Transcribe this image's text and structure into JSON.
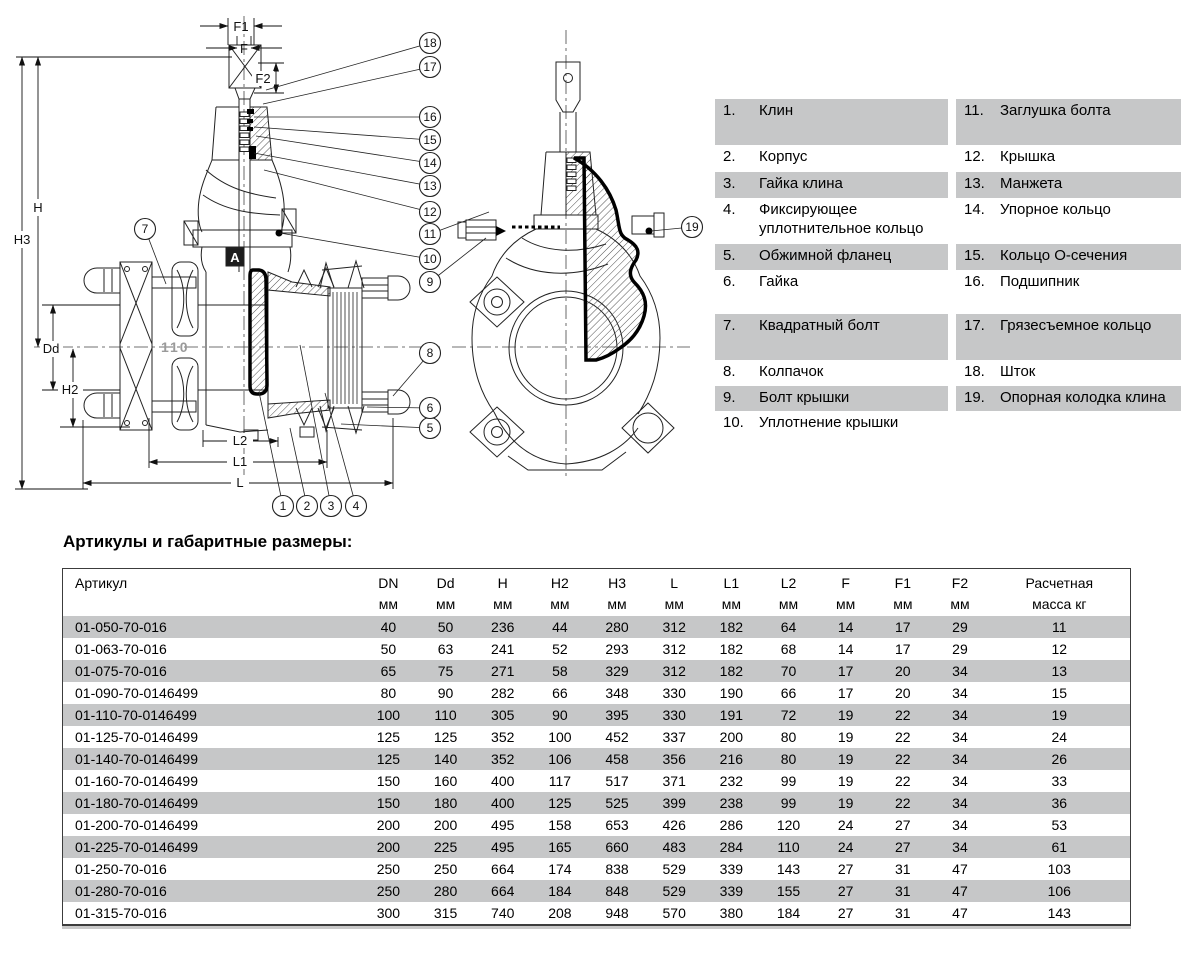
{
  "drawing": {
    "dims": {
      "f1": "F1",
      "f": "F",
      "f2": "F2",
      "h": "H",
      "h3": "H3",
      "dd": "Dd",
      "h2": "H2",
      "l2": "L2",
      "l1": "L1",
      "l": "L"
    },
    "flange_marking": "110",
    "logo_letter": "A",
    "callouts": [
      "1",
      "2",
      "3",
      "4",
      "5",
      "6",
      "7",
      "8",
      "9",
      "10",
      "11",
      "12",
      "13",
      "14",
      "15",
      "16",
      "17",
      "18",
      "19"
    ]
  },
  "parts": {
    "rows": [
      {
        "ln": "1.",
        "lt": "Клин",
        "rn": "11.",
        "rt": "Заглушка болта"
      },
      {
        "ln": "2.",
        "lt": "Корпус",
        "rn": "12.",
        "rt": "Крышка"
      },
      {
        "ln": "3.",
        "lt": "Гайка клина",
        "rn": "13.",
        "rt": "Манжета"
      },
      {
        "ln": "4.",
        "lt": "Фиксирующее уплотнительное кольцо",
        "rn": "14.",
        "rt": "Упорное кольцо"
      },
      {
        "ln": "5.",
        "lt": "Обжимной фланец",
        "rn": "15.",
        "rt": "Кольцо О-сечения"
      },
      {
        "ln": "6.",
        "lt": "Гайка",
        "rn": "16.",
        "rt": "Подшипник"
      },
      {
        "ln": "7.",
        "lt": "Квадратный болт",
        "rn": "17.",
        "rt": "Грязесъемное кольцо"
      },
      {
        "ln": "8.",
        "lt": "Колпачок",
        "rn": "18.",
        "rt": "Шток"
      },
      {
        "ln": "9.",
        "lt": "Болт крышки",
        "rn": "19.",
        "rt": "Опорная колодка клина"
      },
      {
        "ln": "10.",
        "lt": "Уплотнение крышки",
        "rn": "",
        "rt": ""
      }
    ]
  },
  "table": {
    "title": "Артикулы и габаритные размеры:",
    "columns": [
      {
        "label": "Артикул",
        "unit": ""
      },
      {
        "label": "DN",
        "unit": "мм"
      },
      {
        "label": "Dd",
        "unit": "мм"
      },
      {
        "label": "H",
        "unit": "мм"
      },
      {
        "label": "H2",
        "unit": "мм"
      },
      {
        "label": "H3",
        "unit": "мм"
      },
      {
        "label": "L",
        "unit": "мм"
      },
      {
        "label": "L1",
        "unit": "мм"
      },
      {
        "label": "L2",
        "unit": "мм"
      },
      {
        "label": "F",
        "unit": "мм"
      },
      {
        "label": "F1",
        "unit": "мм"
      },
      {
        "label": "F2",
        "unit": "мм"
      },
      {
        "label": "Расчетная",
        "unit": "масса кг"
      }
    ],
    "rows": [
      [
        "01-050-70-016",
        "40",
        "50",
        "236",
        "44",
        "280",
        "312",
        "182",
        "64",
        "14",
        "17",
        "29",
        "11"
      ],
      [
        "01-063-70-016",
        "50",
        "63",
        "241",
        "52",
        "293",
        "312",
        "182",
        "68",
        "14",
        "17",
        "29",
        "12"
      ],
      [
        "01-075-70-016",
        "65",
        "75",
        "271",
        "58",
        "329",
        "312",
        "182",
        "70",
        "17",
        "20",
        "34",
        "13"
      ],
      [
        "01-090-70-0146499",
        "80",
        "90",
        "282",
        "66",
        "348",
        "330",
        "190",
        "66",
        "17",
        "20",
        "34",
        "15"
      ],
      [
        "01-110-70-0146499",
        "100",
        "110",
        "305",
        "90",
        "395",
        "330",
        "191",
        "72",
        "19",
        "22",
        "34",
        "19"
      ],
      [
        "01-125-70-0146499",
        "125",
        "125",
        "352",
        "100",
        "452",
        "337",
        "200",
        "80",
        "19",
        "22",
        "34",
        "24"
      ],
      [
        "01-140-70-0146499",
        "125",
        "140",
        "352",
        "106",
        "458",
        "356",
        "216",
        "80",
        "19",
        "22",
        "34",
        "26"
      ],
      [
        "01-160-70-0146499",
        "150",
        "160",
        "400",
        "117",
        "517",
        "371",
        "232",
        "99",
        "19",
        "22",
        "34",
        "33"
      ],
      [
        "01-180-70-0146499",
        "150",
        "180",
        "400",
        "125",
        "525",
        "399",
        "238",
        "99",
        "19",
        "22",
        "34",
        "36"
      ],
      [
        "01-200-70-0146499",
        "200",
        "200",
        "495",
        "158",
        "653",
        "426",
        "286",
        "120",
        "24",
        "27",
        "34",
        "53"
      ],
      [
        "01-225-70-0146499",
        "200",
        "225",
        "495",
        "165",
        "660",
        "483",
        "284",
        "110",
        "24",
        "27",
        "34",
        "61"
      ],
      [
        "01-250-70-016",
        "250",
        "250",
        "664",
        "174",
        "838",
        "529",
        "339",
        "143",
        "27",
        "31",
        "47",
        "103"
      ],
      [
        "01-280-70-016",
        "250",
        "280",
        "664",
        "184",
        "848",
        "529",
        "339",
        "155",
        "27",
        "31",
        "47",
        "106"
      ],
      [
        "01-315-70-016",
        "300",
        "315",
        "740",
        "208",
        "948",
        "570",
        "380",
        "184",
        "27",
        "31",
        "47",
        "143"
      ]
    ]
  }
}
